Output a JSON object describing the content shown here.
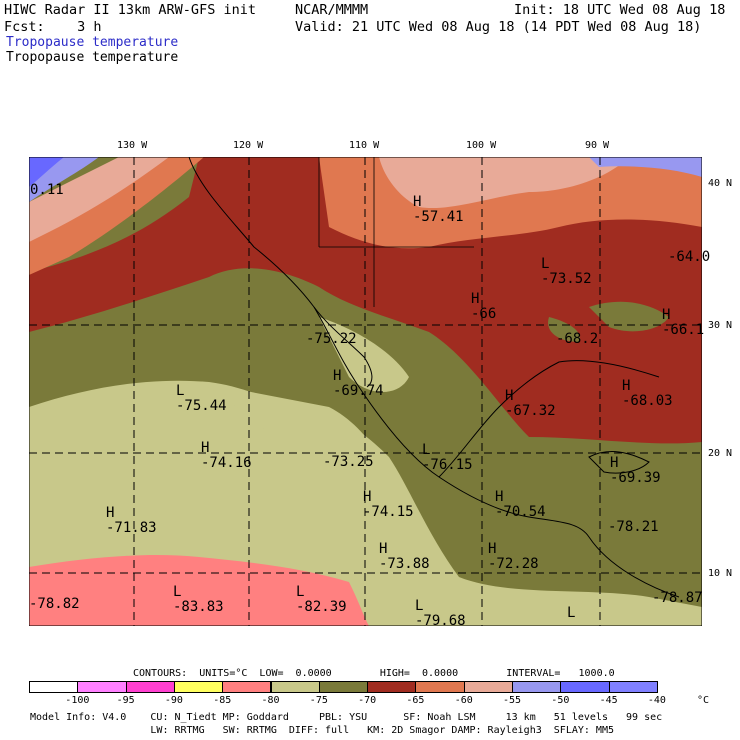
{
  "header": {
    "title": "HIWC Radar II 13km ARW-GFS init",
    "org": "NCAR/MMMM",
    "init": "Init: 18 UTC Wed 08 Aug 18",
    "fcst": "Fcst:    3 h",
    "valid": "Valid: 21 UTC Wed 08 Aug 18 (14 PDT Wed 08 Aug 18)",
    "field_colored": "Tropopause temperature",
    "field_plain": "Tropopause temperature"
  },
  "axes": {
    "lon_labels": [
      "130 W",
      "120 W",
      "110 W",
      "100 W",
      "90 W"
    ],
    "lat_labels": [
      "40 N",
      "30 N",
      "20 N",
      "10 N"
    ]
  },
  "map_labels": [
    {
      "letter": "H",
      "value": "-57.41"
    },
    {
      "letter": "L",
      "value": "-73.52"
    },
    {
      "letter": "H",
      "value": "-66"
    },
    {
      "letter": "",
      "value": "-68.2"
    },
    {
      "letter": "",
      "value": "-64.0"
    },
    {
      "letter": "H",
      "value": "-66.1"
    },
    {
      "letter": "",
      "value": "-75.22"
    },
    {
      "letter": "H",
      "value": "-69.74"
    },
    {
      "letter": "L",
      "value": "-75.44"
    },
    {
      "letter": "H",
      "value": "-67.32"
    },
    {
      "letter": "H",
      "value": "-68.03"
    },
    {
      "letter": "H",
      "value": "-74.16"
    },
    {
      "letter": "",
      "value": "-73.25"
    },
    {
      "letter": "L",
      "value": "-76.15"
    },
    {
      "letter": "H",
      "value": "-69.39"
    },
    {
      "letter": "H",
      "value": "-71.83"
    },
    {
      "letter": "H",
      "value": "-74.15"
    },
    {
      "letter": "H",
      "value": "-70.54"
    },
    {
      "letter": "",
      "value": "-78.21"
    },
    {
      "letter": "H",
      "value": "-73.88"
    },
    {
      "letter": "H",
      "value": "-72.28"
    },
    {
      "letter": "",
      "value": "-78.82"
    },
    {
      "letter": "L",
      "value": "-83.83"
    },
    {
      "letter": "L",
      "value": "-82.39"
    },
    {
      "letter": "L",
      "value": "-79.68"
    },
    {
      "letter": "L",
      "value": ""
    },
    {
      "letter": "",
      "value": "-78.87"
    },
    {
      "letter": "",
      "value": "0.11"
    }
  ],
  "legend": {
    "contours": "CONTOURS:  UNITS=°C  LOW=  0.0000        HIGH=  0.0000        INTERVAL=   1000.0",
    "unit": "°C",
    "ticks": [
      "-100",
      "-95",
      "-90",
      "-85",
      "-80",
      "-75",
      "-70",
      "-65",
      "-60",
      "-55",
      "-50",
      "-45",
      "-40"
    ],
    "colors": [
      "#ffffff",
      "#ff80ff",
      "#ff40d0",
      "#ffff60",
      "#ff8080",
      "#c8c88a",
      "#7a7a3a",
      "#a02c20",
      "#e07850",
      "#e8aa98",
      "#9898f0",
      "#6868ff",
      "#8080ff"
    ]
  },
  "footer": {
    "line1": "Model Info: V4.0    CU: N_Tiedt MP: Goddard     PBL: YSU      SF: Noah LSM     13 km   51 levels   99 sec",
    "line2": "                    LW: RRTMG   SW: RRTMG  DIFF: full   KM: 2D Smagor DAMP: Rayleigh3  SFLAY: MM5"
  }
}
